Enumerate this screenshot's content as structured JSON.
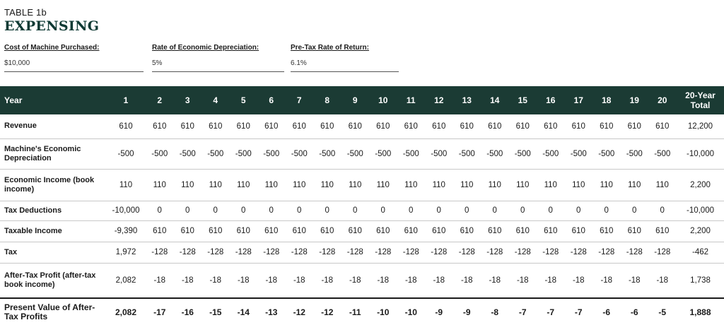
{
  "kicker": "TABLE 1b",
  "title": "EXPENSING",
  "params": [
    {
      "label": "Cost of Machine Purchased:",
      "value": "$10,000"
    },
    {
      "label": "Rate of Economic Depreciation:",
      "value": "5%"
    },
    {
      "label": "Pre-Tax Rate of Return:",
      "value": "6.1%"
    }
  ],
  "header": {
    "year_label": "Year",
    "years": [
      "1",
      "2",
      "3",
      "4",
      "5",
      "6",
      "7",
      "8",
      "9",
      "10",
      "11",
      "12",
      "13",
      "14",
      "15",
      "16",
      "17",
      "18",
      "19",
      "20"
    ],
    "total_label": "20-Year Total"
  },
  "rows": [
    {
      "label": "Revenue",
      "values": [
        "610",
        "610",
        "610",
        "610",
        "610",
        "610",
        "610",
        "610",
        "610",
        "610",
        "610",
        "610",
        "610",
        "610",
        "610",
        "610",
        "610",
        "610",
        "610",
        "610"
      ],
      "total": "12,200"
    },
    {
      "label": "Machine's Economic Depreciation",
      "values": [
        "-500",
        "-500",
        "-500",
        "-500",
        "-500",
        "-500",
        "-500",
        "-500",
        "-500",
        "-500",
        "-500",
        "-500",
        "-500",
        "-500",
        "-500",
        "-500",
        "-500",
        "-500",
        "-500",
        "-500"
      ],
      "total": "-10,000"
    },
    {
      "label": "Economic Income (book income)",
      "values": [
        "110",
        "110",
        "110",
        "110",
        "110",
        "110",
        "110",
        "110",
        "110",
        "110",
        "110",
        "110",
        "110",
        "110",
        "110",
        "110",
        "110",
        "110",
        "110",
        "110"
      ],
      "total": "2,200"
    },
    {
      "label": "Tax Deductions",
      "values": [
        "-10,000",
        "0",
        "0",
        "0",
        "0",
        "0",
        "0",
        "0",
        "0",
        "0",
        "0",
        "0",
        "0",
        "0",
        "0",
        "0",
        "0",
        "0",
        "0",
        "0"
      ],
      "total": "-10,000"
    },
    {
      "label": "Taxable Income",
      "values": [
        "-9,390",
        "610",
        "610",
        "610",
        "610",
        "610",
        "610",
        "610",
        "610",
        "610",
        "610",
        "610",
        "610",
        "610",
        "610",
        "610",
        "610",
        "610",
        "610",
        "610"
      ],
      "total": "2,200"
    },
    {
      "label": "Tax",
      "values": [
        "1,972",
        "-128",
        "-128",
        "-128",
        "-128",
        "-128",
        "-128",
        "-128",
        "-128",
        "-128",
        "-128",
        "-128",
        "-128",
        "-128",
        "-128",
        "-128",
        "-128",
        "-128",
        "-128",
        "-128"
      ],
      "total": "-462"
    },
    {
      "label": "After-Tax Profit (after-tax book income)",
      "values": [
        "2,082",
        "-18",
        "-18",
        "-18",
        "-18",
        "-18",
        "-18",
        "-18",
        "-18",
        "-18",
        "-18",
        "-18",
        "-18",
        "-18",
        "-18",
        "-18",
        "-18",
        "-18",
        "-18",
        "-18"
      ],
      "total": "1,738"
    },
    {
      "label": "Present Value of After-Tax Profits",
      "values": [
        "2,082",
        "-17",
        "-16",
        "-15",
        "-14",
        "-13",
        "-12",
        "-12",
        "-11",
        "-10",
        "-10",
        "-9",
        "-9",
        "-8",
        "-7",
        "-7",
        "-7",
        "-6",
        "-6",
        "-5"
      ],
      "total": "1,888"
    }
  ],
  "colors": {
    "header_bg": "#1b3b34",
    "title": "#0f3a34"
  }
}
